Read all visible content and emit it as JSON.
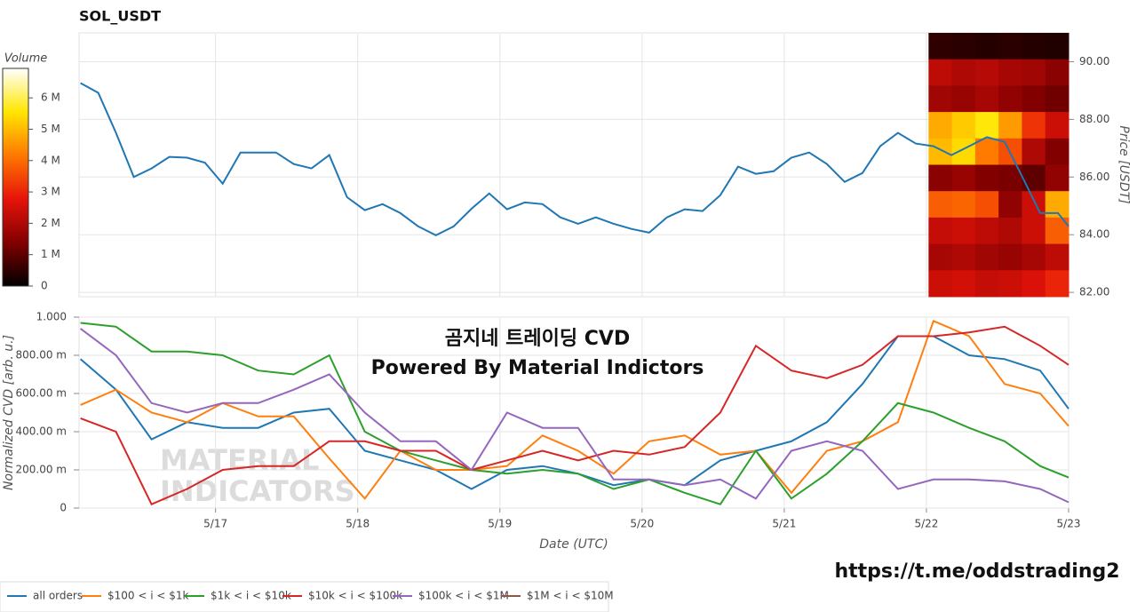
{
  "title": "SOL_USDT",
  "overlay": [
    "곰지네 트레이딩 CVD",
    "Powered By Material Indictors"
  ],
  "watermark": [
    "MATERIAL",
    "INDICATORS"
  ],
  "url": "https://t.me/oddstrading2",
  "chart_data": [
    {
      "type": "line",
      "y_label": "Price [USDT]",
      "color": "#1f77b4",
      "grid": true,
      "x": [
        16.05,
        16.175,
        16.3,
        16.425,
        16.55,
        16.675,
        16.8,
        16.925,
        17.05,
        17.175,
        17.3,
        17.425,
        17.55,
        17.675,
        17.8,
        17.925,
        18.05,
        18.175,
        18.3,
        18.425,
        18.55,
        18.675,
        18.8,
        18.925,
        19.05,
        19.175,
        19.3,
        19.425,
        19.55,
        19.675,
        19.8,
        19.925,
        20.05,
        20.175,
        20.3,
        20.425,
        20.55,
        20.675,
        20.8,
        20.925,
        21.05,
        21.175,
        21.3,
        21.425,
        21.55,
        21.675,
        21.8,
        21.925,
        22.05,
        22.175,
        22.3,
        22.425,
        22.55,
        22.675,
        22.8,
        22.925,
        23.0
      ],
      "values": [
        89.26,
        88.92,
        87.53,
        86.0,
        86.3,
        86.7,
        86.67,
        86.5,
        85.77,
        86.85,
        86.85,
        86.85,
        86.45,
        86.3,
        86.76,
        85.3,
        84.85,
        85.06,
        84.75,
        84.29,
        83.98,
        84.29,
        84.9,
        85.43,
        84.88,
        85.12,
        85.06,
        84.6,
        84.38,
        84.6,
        84.38,
        84.2,
        84.07,
        84.6,
        84.88,
        84.82,
        85.37,
        86.36,
        86.11,
        86.2,
        86.67,
        86.85,
        86.45,
        85.83,
        86.14,
        87.07,
        87.53,
        87.16,
        87.07,
        86.76,
        87.07,
        87.38,
        87.22,
        86.0,
        84.75,
        84.75,
        84.29
      ],
      "xlim": [
        16.04,
        23.0
      ],
      "xticks": [
        {
          "value": 17,
          "label": "5/17"
        },
        {
          "value": 18,
          "label": "5/18"
        },
        {
          "value": 19,
          "label": "5/19"
        },
        {
          "value": 20,
          "label": "5/20"
        },
        {
          "value": 21,
          "label": "5/21"
        },
        {
          "value": 22,
          "label": "5/22"
        },
        {
          "value": 23,
          "label": "5/23"
        }
      ],
      "ylim": [
        81.85,
        91.0
      ],
      "yticks": [
        {
          "value": 82,
          "label": "82.00"
        },
        {
          "value": 84,
          "label": "84.00"
        },
        {
          "value": 86,
          "label": "86.00"
        },
        {
          "value": 88,
          "label": "88.00"
        },
        {
          "value": 90,
          "label": "90.00"
        }
      ],
      "heatmap": {
        "xlim": [
          22.015,
          23.0
        ],
        "values": [
          [
            500000,
            450000,
            400000,
            450000,
            400000,
            350000
          ],
          [
            2200000,
            2000000,
            2100000,
            1900000,
            1800000,
            1500000
          ],
          [
            1800000,
            1700000,
            1900000,
            1600000,
            1400000,
            1200000
          ],
          [
            4800000,
            5200000,
            5600000,
            4600000,
            3200000,
            2400000
          ],
          [
            5000000,
            5400000,
            4200000,
            3600000,
            2000000,
            1400000
          ],
          [
            1500000,
            1700000,
            1400000,
            1300000,
            1000000,
            1600000
          ],
          [
            3800000,
            3900000,
            3600000,
            1600000,
            2400000,
            4800000
          ],
          [
            2300000,
            2400000,
            2200000,
            2000000,
            2400000,
            3800000
          ],
          [
            1900000,
            2000000,
            1800000,
            1700000,
            1900000,
            2200000
          ],
          [
            2400000,
            2500000,
            2300000,
            2400000,
            2600000,
            3000000
          ]
        ],
        "colorbar": {
          "label": "Volume",
          "zlim": [
            0,
            6940000
          ],
          "ticks": [
            0,
            {
              "value": 1000000,
              "label": "1 M"
            },
            {
              "value": 2000000,
              "label": "2 M"
            },
            {
              "value": 3000000,
              "label": "3 M"
            },
            {
              "value": 4000000,
              "label": "4 M"
            },
            {
              "value": 5000000,
              "label": "5 M"
            },
            {
              "value": 6000000,
              "label": "6 M"
            }
          ]
        }
      }
    },
    {
      "type": "line",
      "x_label": "Date (UTC)",
      "y_label": "Normalized CVD [arb. u.]",
      "grid": true,
      "legend": "bottom",
      "x": [
        16.05,
        16.3,
        16.55,
        16.8,
        17.05,
        17.3,
        17.55,
        17.8,
        18.05,
        18.3,
        18.55,
        18.8,
        19.05,
        19.3,
        19.55,
        19.8,
        20.05,
        20.3,
        20.55,
        20.8,
        21.05,
        21.3,
        21.55,
        21.8,
        22.05,
        22.3,
        22.55,
        22.8,
        23.0
      ],
      "xlim": [
        16.04,
        23.0
      ],
      "xticks": [
        {
          "value": 17,
          "label": "5/17"
        },
        {
          "value": 18,
          "label": "5/18"
        },
        {
          "value": 19,
          "label": "5/19"
        },
        {
          "value": 20,
          "label": "5/20"
        },
        {
          "value": 21,
          "label": "5/21"
        },
        {
          "value": 22,
          "label": "5/22"
        },
        {
          "value": 23,
          "label": "5/23"
        }
      ],
      "ylim": [
        0,
        1
      ],
      "yticks": [
        0,
        {
          "value": 0.2,
          "label": "200.00 m"
        },
        {
          "value": 0.4,
          "label": "400.00 m"
        },
        {
          "value": 0.6,
          "label": "600.00 m"
        },
        {
          "value": 0.8,
          "label": "800.00 m"
        },
        {
          "value": 1,
          "label": "1.000"
        }
      ],
      "series": [
        {
          "name": "all orders",
          "color": "#1f77b4",
          "values": [
            0.78,
            0.62,
            0.36,
            0.45,
            0.42,
            0.42,
            0.5,
            0.52,
            0.3,
            0.25,
            0.2,
            0.1,
            0.2,
            0.22,
            0.18,
            0.12,
            0.15,
            0.12,
            0.25,
            0.3,
            0.35,
            0.45,
            0.65,
            0.9,
            0.9,
            0.8,
            0.78,
            0.72,
            0.52
          ]
        },
        {
          "name": "$100 < i < $1k",
          "color": "#ff7f0e",
          "values": [
            0.54,
            0.62,
            0.5,
            0.45,
            0.55,
            0.48,
            0.48,
            0.26,
            0.05,
            0.3,
            0.2,
            0.2,
            0.22,
            0.38,
            0.3,
            0.18,
            0.35,
            0.38,
            0.28,
            0.3,
            0.08,
            0.3,
            0.35,
            0.45,
            0.98,
            0.9,
            0.65,
            0.6,
            0.43
          ]
        },
        {
          "name": "$1k < i < $10k",
          "color": "#2ca02c",
          "values": [
            0.97,
            0.95,
            0.82,
            0.82,
            0.8,
            0.72,
            0.7,
            0.8,
            0.4,
            0.3,
            0.25,
            0.2,
            0.18,
            0.2,
            0.18,
            0.1,
            0.15,
            0.08,
            0.02,
            0.3,
            0.05,
            0.18,
            0.35,
            0.55,
            0.5,
            0.42,
            0.35,
            0.22,
            0.16
          ]
        },
        {
          "name": "$10k < i < $100k",
          "color": "#d62728",
          "values": [
            0.47,
            0.4,
            0.02,
            0.1,
            0.2,
            0.22,
            0.22,
            0.35,
            0.35,
            0.3,
            0.3,
            0.2,
            0.25,
            0.3,
            0.25,
            0.3,
            0.28,
            0.32,
            0.5,
            0.85,
            0.72,
            0.68,
            0.75,
            0.9,
            0.9,
            0.92,
            0.95,
            0.85,
            0.75
          ]
        },
        {
          "name": "$100k < i < $1M",
          "color": "#9467bd",
          "values": [
            0.94,
            0.8,
            0.55,
            0.5,
            0.55,
            0.55,
            0.62,
            0.7,
            0.5,
            0.35,
            0.35,
            0.2,
            0.5,
            0.42,
            0.42,
            0.15,
            0.15,
            0.12,
            0.15,
            0.05,
            0.3,
            0.35,
            0.3,
            0.1,
            0.15,
            0.15,
            0.14,
            0.1,
            0.03
          ]
        },
        {
          "name": "$1M < i < $10M",
          "color": "#8c564b",
          "values": [
            null,
            null,
            null,
            null,
            null,
            null,
            null,
            null,
            null,
            null,
            null,
            null,
            null,
            null,
            null,
            null,
            null,
            null,
            null,
            null,
            null,
            null,
            null,
            null,
            null,
            null,
            null,
            null,
            null
          ]
        }
      ]
    }
  ]
}
